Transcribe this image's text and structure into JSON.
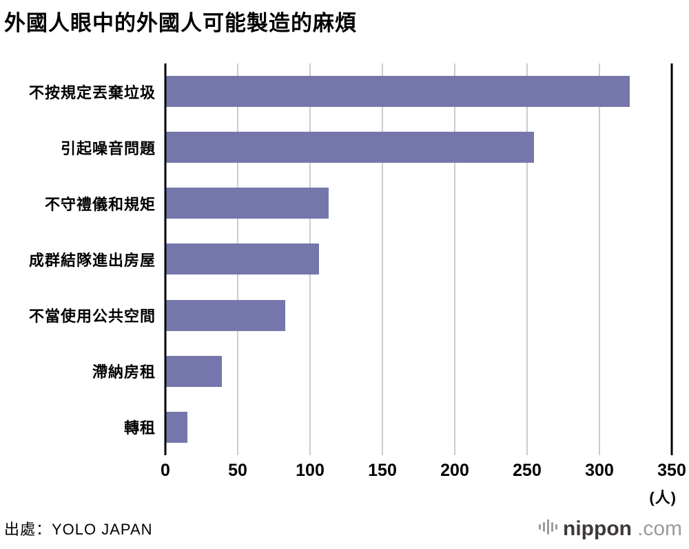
{
  "title": "外國人眼中的外國人可能製造的麻煩",
  "source": "出處：YOLO JAPAN",
  "logo": {
    "name": "nippon",
    "tld": ".com"
  },
  "chart_data": {
    "type": "bar",
    "orientation": "horizontal",
    "title": "外國人眼中的外國人可能製造的麻煩",
    "categories": [
      "不按規定丟棄垃圾",
      "引起噪音問題",
      "不守禮儀和規矩",
      "成群結隊進出房屋",
      "不當使用公共空間",
      "滯納房租",
      "轉租"
    ],
    "values": [
      321,
      255,
      113,
      106,
      83,
      39,
      15
    ],
    "xlim": [
      0,
      350
    ],
    "xticks": [
      0,
      50,
      100,
      150,
      200,
      250,
      300,
      350
    ],
    "unit": "(人)",
    "bar_color": "#7577ac",
    "gridline_color": "#cccccc",
    "grid": true,
    "legend": "none"
  }
}
